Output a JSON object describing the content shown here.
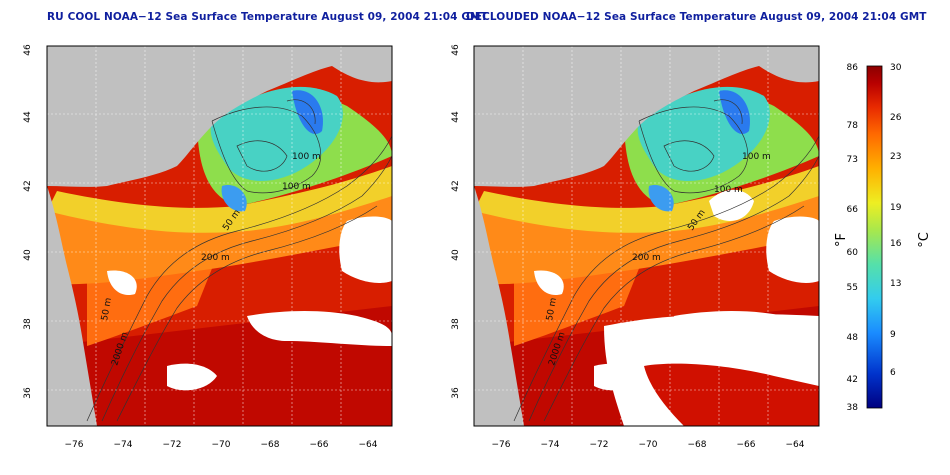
{
  "left_panel": {
    "title": "RU COOL NOAA−12 Sea Surface Temperature August 09, 2004 21:04 GMT",
    "labels": {
      "d100a": "100 m",
      "d100b": "100 m",
      "d50": "50 m",
      "d200": "200 m",
      "d2000": "2000 m",
      "d50s": "50 m"
    }
  },
  "right_panel": {
    "title": "DECLOUDED NOAA−12 Sea Surface Temperature August 09, 2004 21:04 GMT",
    "labels": {
      "d100a": "100 m",
      "d100b": "100 m",
      "d50": "50 m",
      "d200": "200 m",
      "d2000": "2000 m",
      "d50s": "50 m"
    }
  },
  "axes": {
    "lat_ticks": [
      "46",
      "44",
      "42",
      "40",
      "38",
      "36"
    ],
    "lon_ticks": [
      "−76",
      "−74",
      "−72",
      "−70",
      "−68",
      "−66",
      "−64"
    ]
  },
  "colorbar": {
    "unit_f": "°F",
    "unit_c": "°C",
    "f_ticks": [
      "86",
      "78",
      "73",
      "66",
      "60",
      "55",
      "48",
      "42",
      "38"
    ],
    "c_ticks": [
      "30",
      "26",
      "23",
      "19",
      "16",
      "13",
      "9",
      "6"
    ],
    "colors": [
      "#000080",
      "#0033cc",
      "#1a8cff",
      "#33ccee",
      "#55e0aa",
      "#a8e84c",
      "#eeee22",
      "#ffb000",
      "#ff6a00",
      "#e82a00",
      "#b80000",
      "#8c0000"
    ]
  },
  "colors": {
    "land": "#c0c0c0",
    "cloud": "#ffffff",
    "warm": "#dd2200",
    "hot": "#c80a00",
    "orange": "#ff7a10",
    "yellow": "#f4e23a",
    "green": "#8de04a",
    "cyan": "#40d2cc",
    "blue": "#2a7aee",
    "title": "#0f1f9e"
  }
}
